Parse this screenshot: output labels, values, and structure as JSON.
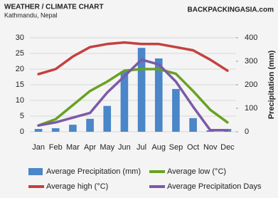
{
  "chart_data": {
    "type": "combo",
    "title": "WEATHER / CLIMATE CHART",
    "subtitle": "Kathmandu, Nepal",
    "source": "BACKPACKINGASIA.com",
    "y2_label": "Precipitation (mm)",
    "categories": [
      "Jan",
      "Feb",
      "Mar",
      "Apr",
      "May",
      "Jun",
      "Jul",
      "Aug",
      "Sep",
      "Oct",
      "Nov",
      "Dec"
    ],
    "ylim": [
      0,
      30
    ],
    "yticks": [
      0,
      5,
      10,
      15,
      20,
      25,
      30
    ],
    "y2lim": [
      0,
      400
    ],
    "y2ticks": [
      0,
      100,
      200,
      300,
      400
    ],
    "grid": true,
    "series": [
      {
        "name": "Average Precipitation (mm)",
        "type": "bar",
        "axis": "y2",
        "color": "#4a86c8",
        "values": [
          12,
          15,
          30,
          55,
          110,
          258,
          357,
          312,
          182,
          58,
          6,
          12
        ]
      },
      {
        "name": "Average low (°C)",
        "type": "line",
        "color": "#6aa121",
        "values": [
          2,
          4,
          8.5,
          13,
          16,
          19.5,
          20,
          20,
          18.5,
          13,
          7,
          3
        ]
      },
      {
        "name": "Average high (°C)",
        "type": "line",
        "color": "#c44040",
        "values": [
          18.4,
          20,
          24,
          27,
          28,
          28.5,
          28,
          28,
          27,
          26,
          23,
          19.5
        ]
      },
      {
        "name": "Average Precipitation Days",
        "type": "line",
        "color": "#7b5aa6",
        "values": [
          2,
          3,
          4.5,
          6,
          12.5,
          17.7,
          23,
          21.5,
          16,
          8,
          0.5,
          0.5
        ]
      }
    ]
  }
}
